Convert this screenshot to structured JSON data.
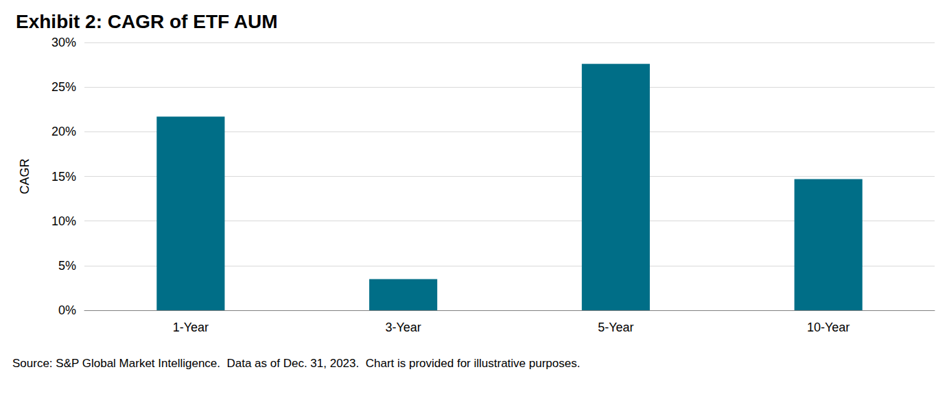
{
  "chart_data": {
    "type": "bar",
    "title": "Exhibit 2: CAGR of ETF AUM",
    "y_label": "CAGR",
    "categories": [
      "1-Year",
      "3-Year",
      "5-Year",
      "10-Year"
    ],
    "values": [
      21.7,
      3.5,
      27.6,
      14.7
    ],
    "color": "#006e87",
    "ylim": [
      0,
      30
    ],
    "yticks": [
      {
        "value": 0,
        "label": "0%"
      },
      {
        "value": 5,
        "label": "5%"
      },
      {
        "value": 10,
        "label": "10%"
      },
      {
        "value": 15,
        "label": "15%"
      },
      {
        "value": 20,
        "label": "20%"
      },
      {
        "value": 25,
        "label": "25%"
      },
      {
        "value": 30,
        "label": "30%"
      }
    ],
    "grid": true,
    "source": "Source: S&P Global Market Intelligence.  Data as of Dec. 31, 2023.  Chart is provided for illustrative purposes."
  }
}
